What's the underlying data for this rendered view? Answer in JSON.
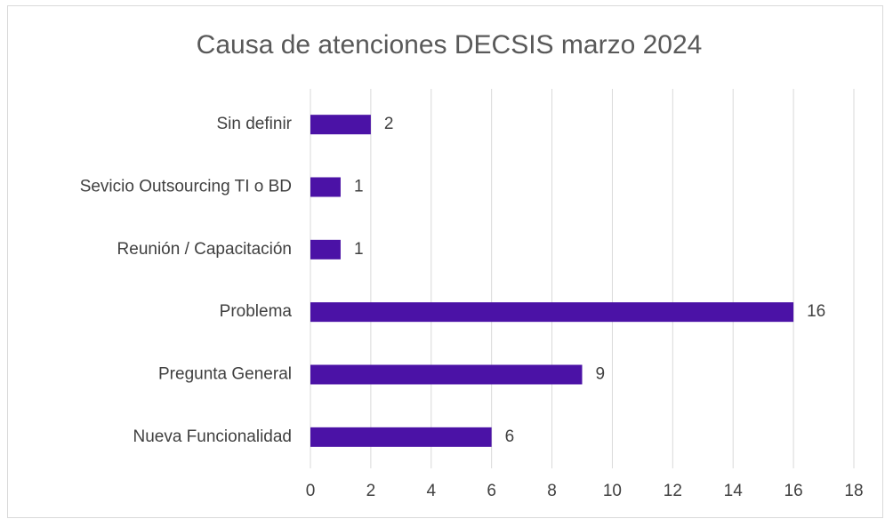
{
  "chart_data": {
    "type": "bar",
    "orientation": "horizontal",
    "title": "Causa de atenciones DECSIS marzo 2024",
    "categories": [
      "Sin definir",
      "Sevicio Outsourcing TI o BD",
      "Reunión / Capacitación",
      "Problema",
      "Pregunta General",
      "Nueva Funcionalidad"
    ],
    "values": [
      2,
      1,
      1,
      16,
      9,
      6
    ],
    "color": "#4b12a6",
    "xlim": [
      0,
      18
    ],
    "xticks": [
      0,
      2,
      4,
      6,
      8,
      10,
      12,
      14,
      16,
      18
    ],
    "grid": true,
    "data_labels": true
  }
}
